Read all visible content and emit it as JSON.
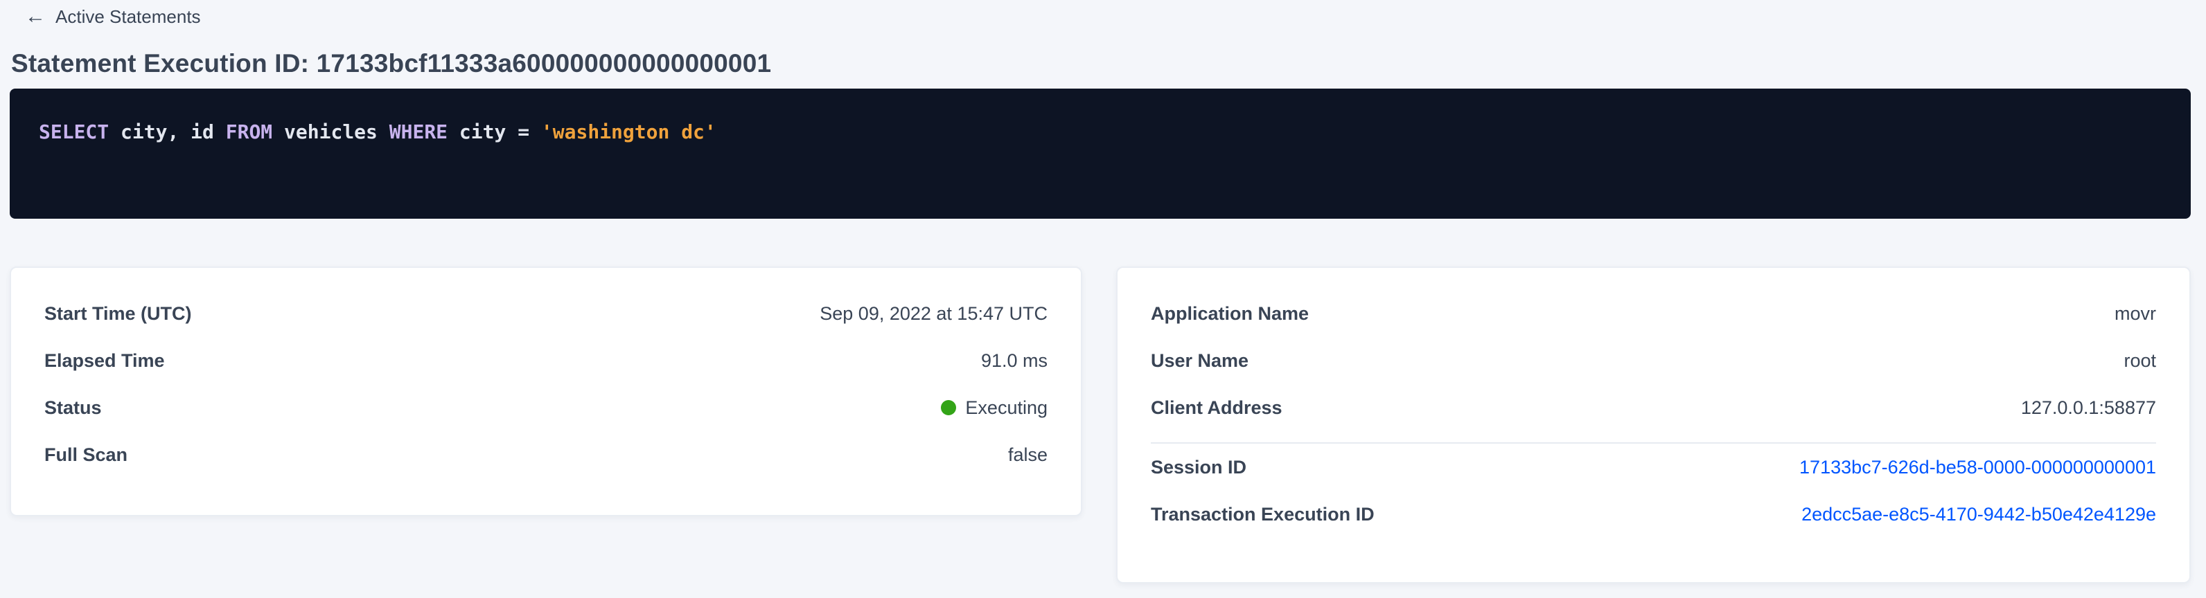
{
  "header": {
    "back_label": "Active Statements",
    "back_arrow": "←",
    "title": "Statement Execution ID: 17133bcf11333a600000000000000001"
  },
  "sql": {
    "tokens": [
      {
        "type": "keyword",
        "text": "SELECT"
      },
      {
        "type": "plain",
        "text": " city, id "
      },
      {
        "type": "keyword",
        "text": "FROM"
      },
      {
        "type": "plain",
        "text": " vehicles "
      },
      {
        "type": "keyword",
        "text": "WHERE"
      },
      {
        "type": "plain",
        "text": " city = "
      },
      {
        "type": "string",
        "text": "'washington dc'"
      }
    ]
  },
  "left_card": {
    "rows": [
      {
        "label": "Start Time (UTC)",
        "value": "Sep 09, 2022 at 15:47 UTC"
      },
      {
        "label": "Elapsed Time",
        "value": "91.0 ms"
      },
      {
        "label": "Status",
        "value": "Executing"
      },
      {
        "label": "Full Scan",
        "value": "false"
      }
    ]
  },
  "right_card": {
    "rows_top": [
      {
        "label": "Application Name",
        "value": "movr"
      },
      {
        "label": "User Name",
        "value": "root"
      },
      {
        "label": "Client Address",
        "value": "127.0.0.1:58877"
      }
    ],
    "rows_links": [
      {
        "label": "Session ID",
        "value": "17133bc7-626d-be58-0000-000000000001"
      },
      {
        "label": "Transaction Execution ID",
        "value": "2edcc5ae-e8c5-4170-9442-b50e42e4129e"
      }
    ]
  },
  "colors": {
    "page_background": "#f4f6fa",
    "text_dark": "#394455",
    "sql_background": "#0d1424",
    "sql_keyword": "#c8b3ee",
    "sql_plain": "#e3e7ef",
    "sql_string": "#f0a23c",
    "status_executing_green": "#33a417",
    "link_blue": "#0055ff"
  }
}
